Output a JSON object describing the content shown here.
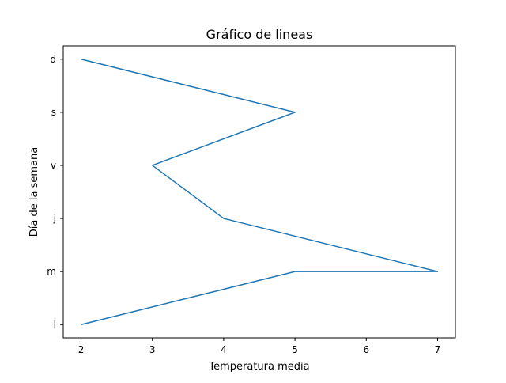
{
  "chart_data": {
    "type": "line",
    "title": "Gráfico de lineas",
    "xlabel": "Temperatura media",
    "ylabel": "Día de la semana",
    "categories": [
      "l",
      "m",
      "m",
      "j",
      "v",
      "s",
      "d"
    ],
    "category_axis": "y",
    "y_tick_labels": [
      "l",
      "m",
      "j",
      "v",
      "s",
      "d"
    ],
    "y_positions": [
      0,
      1,
      1,
      2,
      3,
      4,
      5
    ],
    "values": [
      2,
      5,
      7,
      4,
      3,
      5,
      2
    ],
    "xlim": [
      1.75,
      7.25
    ],
    "ylim": [
      -0.25,
      5.25
    ],
    "x_ticks": [
      2,
      3,
      4,
      5,
      6,
      7
    ],
    "grid": false,
    "line_color": "#1f77b4"
  }
}
